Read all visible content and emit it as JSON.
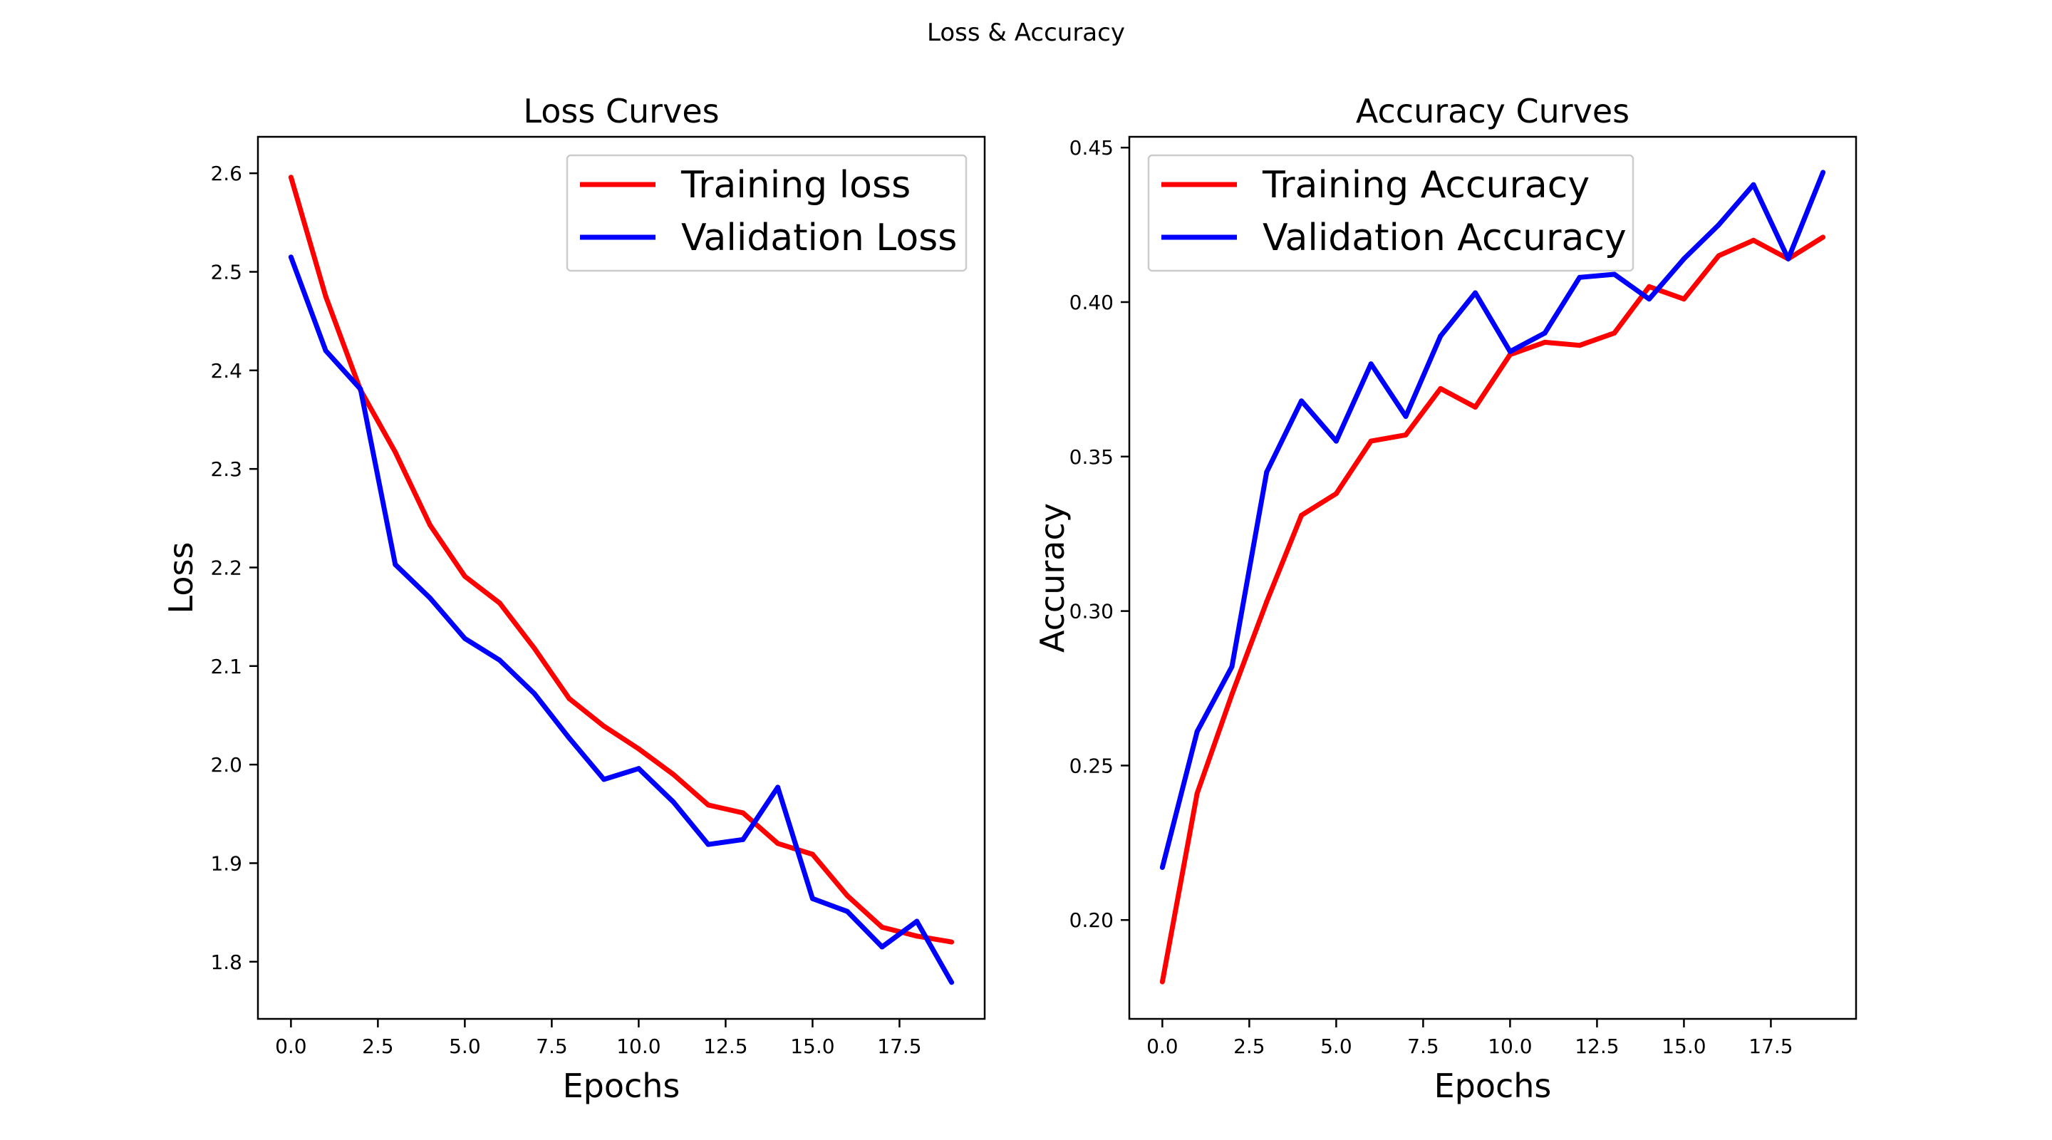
{
  "figure": {
    "suptitle": "Loss & Accuracy"
  },
  "chart_data": [
    {
      "type": "line",
      "title": "Loss Curves",
      "xlabel": "Epochs",
      "ylabel": "Loss",
      "xlim": [
        -0.95,
        19.95
      ],
      "ylim": [
        1.742,
        2.637
      ],
      "xticks": [
        0,
        2.5,
        5,
        7.5,
        10,
        12.5,
        15,
        17.5
      ],
      "xtick_labels": [
        "0.0",
        "2.5",
        "5.0",
        "7.5",
        "10.0",
        "12.5",
        "15.0",
        "17.5"
      ],
      "yticks": [
        1.8,
        1.9,
        2.0,
        2.1,
        2.2,
        2.3,
        2.4,
        2.5,
        2.6
      ],
      "ytick_labels": [
        "1.8",
        "1.9",
        "2.0",
        "2.1",
        "2.2",
        "2.3",
        "2.4",
        "2.5",
        "2.6"
      ],
      "grid": false,
      "legend": "upper right",
      "x": [
        0,
        1,
        2,
        3,
        4,
        5,
        6,
        7,
        8,
        9,
        10,
        11,
        12,
        13,
        14,
        15,
        16,
        17,
        18,
        19
      ],
      "series": [
        {
          "name": "Training loss",
          "color": "#ff0000",
          "values": [
            2.596,
            2.475,
            2.38,
            2.317,
            2.243,
            2.191,
            2.164,
            2.118,
            2.067,
            2.039,
            2.016,
            1.99,
            1.959,
            1.951,
            1.92,
            1.909,
            1.867,
            1.835,
            1.826,
            1.82
          ]
        },
        {
          "name": "Validation Loss",
          "color": "#0000ff",
          "values": [
            2.515,
            2.42,
            2.381,
            2.203,
            2.169,
            2.128,
            2.106,
            2.072,
            2.027,
            1.985,
            1.996,
            1.962,
            1.919,
            1.924,
            1.977,
            1.864,
            1.851,
            1.815,
            1.841,
            1.779
          ]
        }
      ]
    },
    {
      "type": "line",
      "title": "Accuracy Curves",
      "xlabel": "Epochs",
      "ylabel": "Accuracy",
      "xlim": [
        -0.95,
        19.95
      ],
      "ylim": [
        0.168,
        0.4535
      ],
      "xticks": [
        0,
        2.5,
        5,
        7.5,
        10,
        12.5,
        15,
        17.5
      ],
      "xtick_labels": [
        "0.0",
        "2.5",
        "5.0",
        "7.5",
        "10.0",
        "12.5",
        "15.0",
        "17.5"
      ],
      "yticks": [
        0.2,
        0.25,
        0.3,
        0.35,
        0.4,
        0.45
      ],
      "ytick_labels": [
        "0.20",
        "0.25",
        "0.30",
        "0.35",
        "0.40",
        "0.45"
      ],
      "grid": false,
      "legend": "upper left",
      "x": [
        0,
        1,
        2,
        3,
        4,
        5,
        6,
        7,
        8,
        9,
        10,
        11,
        12,
        13,
        14,
        15,
        16,
        17,
        18,
        19
      ],
      "series": [
        {
          "name": "Training Accuracy",
          "color": "#ff0000",
          "values": [
            0.18,
            0.241,
            0.273,
            0.303,
            0.331,
            0.338,
            0.355,
            0.357,
            0.372,
            0.366,
            0.383,
            0.387,
            0.386,
            0.39,
            0.405,
            0.401,
            0.415,
            0.42,
            0.414,
            0.421
          ]
        },
        {
          "name": "Validation Accuracy",
          "color": "#0000ff",
          "values": [
            0.217,
            0.261,
            0.282,
            0.345,
            0.368,
            0.355,
            0.38,
            0.363,
            0.389,
            0.403,
            0.384,
            0.39,
            0.408,
            0.409,
            0.401,
            0.414,
            0.425,
            0.438,
            0.414,
            0.442
          ]
        }
      ]
    }
  ]
}
